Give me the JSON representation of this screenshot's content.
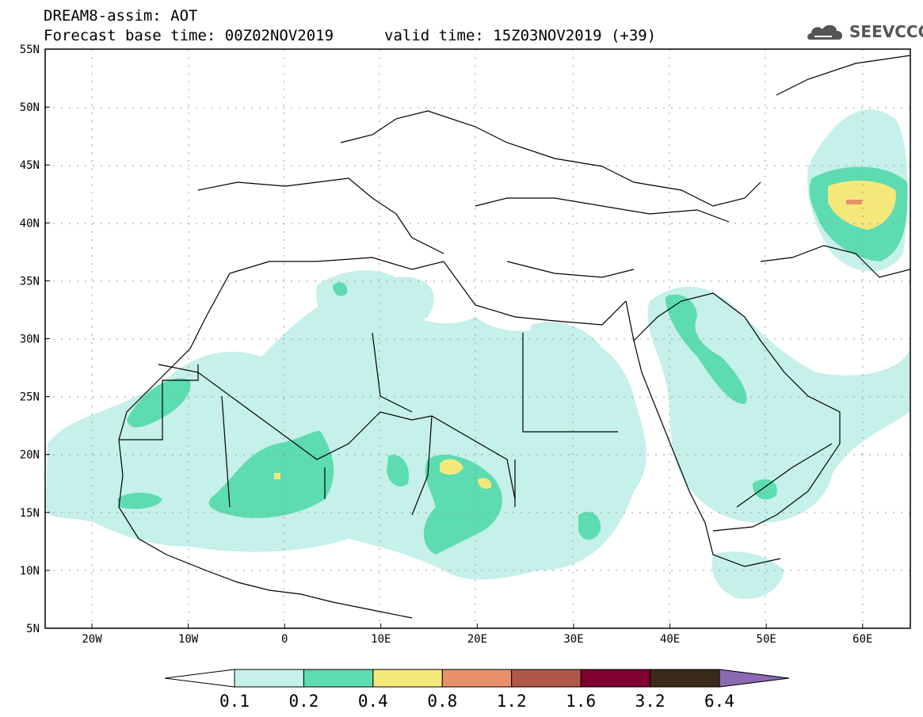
{
  "header": {
    "title": "DREAM8-assim: AOT",
    "base_time": "Forecast base time: 00Z02NOV2019",
    "valid_time": "valid time: 15Z03NOV2019 (+39)",
    "logo_text": "SEEVCCC"
  },
  "map": {
    "lat_labels": [
      "55N",
      "50N",
      "45N",
      "40N",
      "35N",
      "30N",
      "25N",
      "20N",
      "15N",
      "10N",
      "5N"
    ],
    "lon_labels": [
      "20W",
      "10W",
      "0",
      "10E",
      "20E",
      "30E",
      "40E",
      "50E",
      "60E"
    ],
    "grid": true
  },
  "colorbar": {
    "labels": [
      "0.1",
      "0.2",
      "0.4",
      "0.8",
      "1.2",
      "1.6",
      "3.2",
      "6.4"
    ],
    "colors": {
      "under": "#ffffff",
      "b1": "#c6f0ea",
      "b2": "#5ddbb1",
      "b3": "#f5e87a",
      "b4": "#e8906a",
      "b5": "#b05848",
      "b6": "#800030",
      "b7": "#3a2a1a",
      "over": "#8a6ab0"
    }
  }
}
